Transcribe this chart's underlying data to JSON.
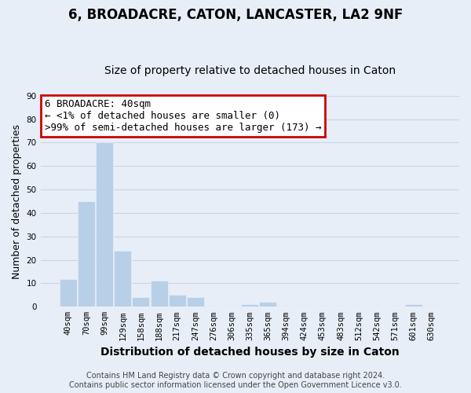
{
  "title": "6, BROADACRE, CATON, LANCASTER, LA2 9NF",
  "subtitle": "Size of property relative to detached houses in Caton",
  "xlabel": "Distribution of detached houses by size in Caton",
  "ylabel": "Number of detached properties",
  "bar_labels": [
    "40sqm",
    "70sqm",
    "99sqm",
    "129sqm",
    "158sqm",
    "188sqm",
    "217sqm",
    "247sqm",
    "276sqm",
    "306sqm",
    "335sqm",
    "365sqm",
    "394sqm",
    "424sqm",
    "453sqm",
    "483sqm",
    "512sqm",
    "542sqm",
    "571sqm",
    "601sqm",
    "630sqm"
  ],
  "bar_values": [
    12,
    45,
    70,
    24,
    4,
    11,
    5,
    4,
    0,
    0,
    1,
    2,
    0,
    0,
    0,
    0,
    0,
    0,
    0,
    1,
    0
  ],
  "bar_color_default": "#b8cfe8",
  "bar_color_highlight": "#b8cfe8",
  "highlight_index": 0,
  "ylim": [
    0,
    90
  ],
  "yticks": [
    0,
    10,
    20,
    30,
    40,
    50,
    60,
    70,
    80,
    90
  ],
  "annotation_line1": "6 BROADACRE: 40sqm",
  "annotation_line2": "← <1% of detached houses are smaller (0)",
  "annotation_line3": ">99% of semi-detached houses are larger (173) →",
  "annotation_box_edgecolor": "#cc0000",
  "annotation_box_facecolor": "white",
  "footer_line1": "Contains HM Land Registry data © Crown copyright and database right 2024.",
  "footer_line2": "Contains public sector information licensed under the Open Government Licence v3.0.",
  "background_color": "#e8eef8",
  "grid_color": "#c8d4e8",
  "title_fontsize": 12,
  "subtitle_fontsize": 10,
  "xlabel_fontsize": 10,
  "ylabel_fontsize": 9,
  "tick_fontsize": 7.5,
  "footer_fontsize": 7,
  "annotation_fontsize": 9
}
